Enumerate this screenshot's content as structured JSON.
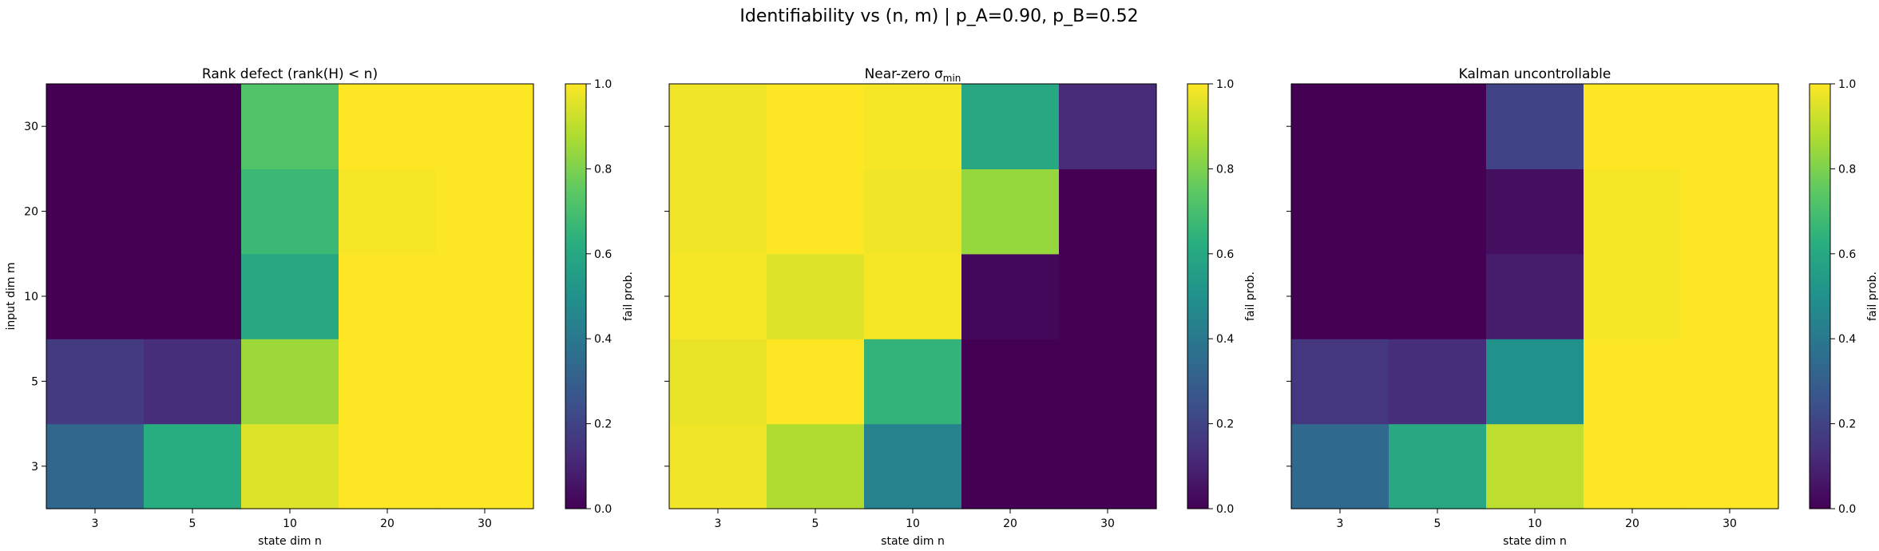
{
  "figure_title": "Identifiability vs (n, m)  |  p_A=0.90, p_B=0.52",
  "colorbar": {
    "label": "fail prob.",
    "ticks": [
      "0.0",
      "0.2",
      "0.4",
      "0.6",
      "0.8",
      "1.0"
    ],
    "colormap": "viridis"
  },
  "chart_data": [
    {
      "type": "heatmap",
      "title": "Rank defect  (rank(H) < n)",
      "xlabel": "state dim n",
      "ylabel": "input dim m",
      "x_categories": [
        "3",
        "5",
        "10",
        "20",
        "30"
      ],
      "y_categories": [
        "3",
        "5",
        "10",
        "20",
        "30"
      ],
      "vmin": 0.0,
      "vmax": 1.0,
      "values": [
        [
          0.33,
          0.62,
          0.95,
          1.0,
          1.0
        ],
        [
          0.17,
          0.13,
          0.85,
          1.0,
          1.0
        ],
        [
          0.0,
          0.0,
          0.6,
          1.0,
          1.0
        ],
        [
          0.0,
          0.0,
          0.67,
          0.99,
          1.0
        ],
        [
          0.0,
          0.0,
          0.72,
          1.0,
          1.0
        ]
      ]
    },
    {
      "type": "heatmap",
      "title": "Near-zero σ",
      "title_sub": "min",
      "xlabel": "state dim n",
      "ylabel": "",
      "x_categories": [
        "3",
        "5",
        "10",
        "20",
        "30"
      ],
      "y_categories": [
        "3",
        "5",
        "10",
        "20",
        "30"
      ],
      "vmin": 0.0,
      "vmax": 1.0,
      "values": [
        [
          0.98,
          0.88,
          0.44,
          0.0,
          0.0
        ],
        [
          0.97,
          1.0,
          0.65,
          0.0,
          0.0
        ],
        [
          0.99,
          0.95,
          0.99,
          0.02,
          0.0
        ],
        [
          0.98,
          1.0,
          0.98,
          0.84,
          0.0
        ],
        [
          0.98,
          1.0,
          0.99,
          0.6,
          0.12
        ]
      ]
    },
    {
      "type": "heatmap",
      "title": "Kalman uncontrollable",
      "xlabel": "state dim n",
      "ylabel": "",
      "x_categories": [
        "3",
        "5",
        "10",
        "20",
        "30"
      ],
      "y_categories": [
        "3",
        "5",
        "10",
        "20",
        "30"
      ],
      "vmin": 0.0,
      "vmax": 1.0,
      "values": [
        [
          0.34,
          0.6,
          0.9,
          1.0,
          1.0
        ],
        [
          0.16,
          0.13,
          0.5,
          1.0,
          1.0
        ],
        [
          0.0,
          0.0,
          0.08,
          0.99,
          1.0
        ],
        [
          0.0,
          0.0,
          0.04,
          0.99,
          1.0
        ],
        [
          0.0,
          0.0,
          0.2,
          1.0,
          1.0
        ]
      ]
    }
  ]
}
